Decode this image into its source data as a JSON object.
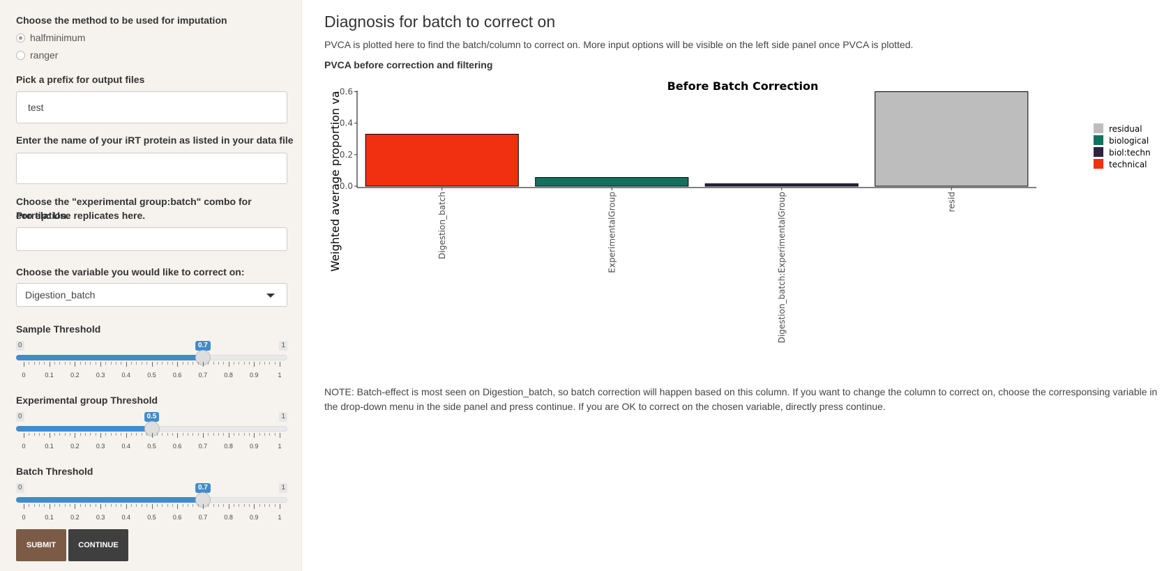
{
  "sidebar": {
    "imputation": {
      "label": "Choose the method to be used for imputation",
      "options": [
        "halfminimum",
        "ranger"
      ],
      "selected": "halfminimum"
    },
    "prefix": {
      "label": "Pick a prefix for output files",
      "value": "test"
    },
    "irt": {
      "label": "Enter the name of your iRT protein as listed in your data file",
      "value": ""
    },
    "combo": {
      "label_line1": "Choose the \"experimental group:batch\" combo for correlation.",
      "label_line2": "Pro tip: Use replicates here.",
      "value": ""
    },
    "correct_var": {
      "label": "Choose the variable you would like to correct on:",
      "value": "Digestion_batch"
    },
    "sliders": [
      {
        "label": "Sample Threshold",
        "min": "0",
        "max": "1",
        "value": 0.7,
        "value_label": "0.7"
      },
      {
        "label": "Experimental group Threshold",
        "min": "0",
        "max": "1",
        "value": 0.5,
        "value_label": "0.5"
      },
      {
        "label": "Batch Threshold",
        "min": "0",
        "max": "1",
        "value": 0.7,
        "value_label": "0.7"
      }
    ],
    "tick_labels": [
      "0",
      "0.1",
      "0.2",
      "0.3",
      "0.4",
      "0.5",
      "0.6",
      "0.7",
      "0.8",
      "0.9",
      "1"
    ],
    "submit_label": "SUBMIT",
    "continue_label": "CONTINUE"
  },
  "main": {
    "title": "Diagnosis for batch to correct on",
    "intro": "PVCA is plotted here to find the batch/column to correct on. More input options will be visible on the left side panel once PVCA is plotted.",
    "subhead": "PVCA before correction and filtering",
    "note": "NOTE: Batch-effect is most seen on Digestion_batch, so batch correction will happen based on this column. If you want to change the column to correct on, choose the corresponsing variable in the drop-down menu in the side panel and press continue. If you are OK to correct on the chosen variable, directly press continue."
  },
  "chart_data": {
    "type": "bar",
    "title": "Before Batch Correction",
    "ylabel": "Weighted average proportion va",
    "xlabel": "",
    "ylim": [
      0,
      0.62
    ],
    "yticks": [
      "0.0",
      "0.2",
      "0.4",
      "0.6"
    ],
    "categories": [
      "Digestion_batch",
      "ExperimentalGroup",
      "Digestion_batch:ExperimentalGroup",
      "resid"
    ],
    "values": [
      0.33,
      0.055,
      0.015,
      0.6
    ],
    "groups": [
      "technical",
      "biological",
      "biol:techn",
      "residual"
    ],
    "legend": [
      {
        "name": "residual",
        "color": "#bdbdbd"
      },
      {
        "name": "biological",
        "color": "#11735f"
      },
      {
        "name": "biol:techn",
        "color": "#2d2444"
      },
      {
        "name": "technical",
        "color": "#f03010"
      }
    ],
    "legend_position": "right"
  }
}
